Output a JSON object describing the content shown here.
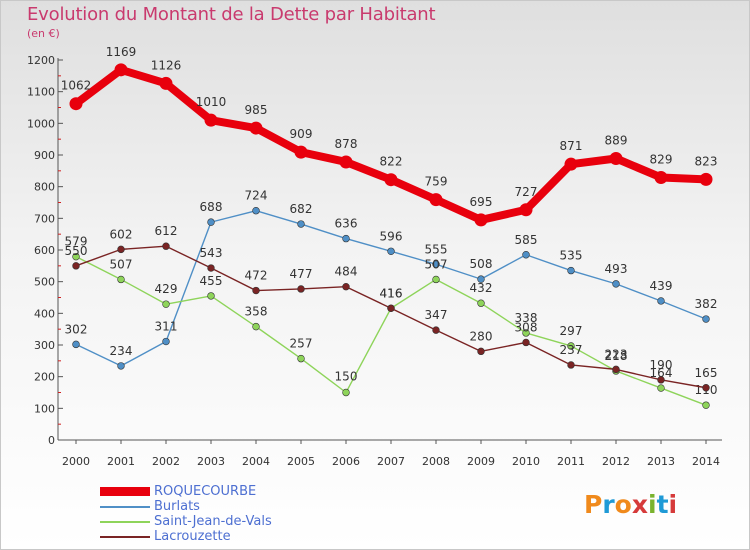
{
  "title": "Evolution du Montant de la Dette par Habitant",
  "subtitle": "(en €)",
  "logo": {
    "text": "Proxiti",
    "colors": [
      "#f08a1c",
      "#1f9ad6",
      "#f08a1c",
      "#d63a3a",
      "#7ab32e",
      "#1f9ad6",
      "#d63a3a"
    ]
  },
  "chart_data": {
    "type": "line",
    "title": "Evolution du Montant de la Dette par Habitant",
    "ylabel": "(en €)",
    "x": [
      2000,
      2001,
      2002,
      2003,
      2004,
      2005,
      2006,
      2007,
      2008,
      2009,
      2010,
      2011,
      2012,
      2013,
      2014
    ],
    "ylim": [
      0,
      1200
    ],
    "yticks": [
      0,
      100,
      200,
      300,
      400,
      500,
      600,
      700,
      800,
      900,
      1000,
      1100,
      1200
    ],
    "grid": false,
    "legend_position": "bottom-left",
    "series": [
      {
        "name": "ROQUECOURBE",
        "color": "#e8000d",
        "emphasis": true,
        "values": [
          1062,
          1169,
          1126,
          1010,
          985,
          909,
          878,
          822,
          759,
          695,
          727,
          871,
          889,
          829,
          823
        ]
      },
      {
        "name": "Burlats",
        "color": "#4f8fc6",
        "emphasis": false,
        "values": [
          302,
          234,
          311,
          688,
          724,
          682,
          636,
          596,
          555,
          508,
          585,
          535,
          493,
          439,
          382
        ]
      },
      {
        "name": "Saint-Jean-de-Vals",
        "color": "#8ed45a",
        "emphasis": false,
        "values": [
          579,
          507,
          429,
          455,
          358,
          257,
          150,
          416,
          507,
          432,
          338,
          297,
          218,
          164,
          110
        ]
      },
      {
        "name": "Lacrouzette",
        "color": "#7a2424",
        "emphasis": false,
        "values": [
          550,
          602,
          612,
          543,
          472,
          477,
          484,
          416,
          347,
          280,
          308,
          237,
          223,
          190,
          165
        ]
      }
    ]
  }
}
